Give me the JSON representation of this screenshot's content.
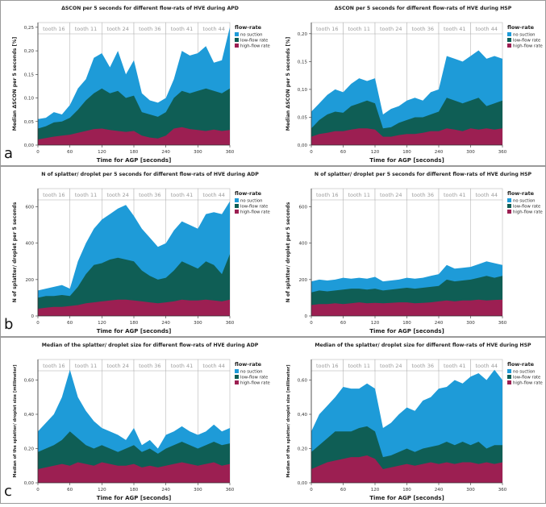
{
  "colors": {
    "no_suction": "#1e9bd8",
    "low_flow": "#0f5e55",
    "high_flow": "#9c1f52",
    "band_border": "#b8b8b8",
    "tooth_text": "#9a9a9a",
    "axis": "#333333",
    "grid": "#d8d8d8"
  },
  "legend": {
    "title": "flow-rate",
    "items": [
      {
        "label": "no suction",
        "color": "#1e9bd8"
      },
      {
        "label": "low-flow rate",
        "color": "#0f5e55"
      },
      {
        "label": "high-flow rate",
        "color": "#9c1f52"
      }
    ]
  },
  "rows": [
    {
      "letter": "a"
    },
    {
      "letter": "b"
    },
    {
      "letter": "c"
    }
  ],
  "chart_data": [
    {
      "id": "a1",
      "type": "area",
      "row": 0,
      "col": 0,
      "title": "ΔSCON per 5 seconds for different flow-rats of HVE during APD",
      "xlabel": "Time for AGP [seconds]",
      "ylabel": "Median ΔSCON per 5 seconds [%]",
      "xlim": [
        0,
        360
      ],
      "ylim": [
        0,
        0.26
      ],
      "xticks": [
        0,
        60,
        120,
        180,
        240,
        300,
        360
      ],
      "xtick_labels": [
        "0",
        "60",
        "120",
        "180",
        "240",
        "300",
        "360"
      ],
      "yticks": [
        0,
        0.05,
        0.1,
        0.15,
        0.2,
        0.25
      ],
      "ytick_labels": [
        "0,00",
        "0,05",
        "0,10",
        "0,15",
        "0,20",
        "0,25"
      ],
      "teeth": [
        "tooth 16",
        "tooth 11",
        "tooth 24",
        "tooth 36",
        "tooth 41",
        "tooth 44"
      ],
      "x": [
        0,
        15,
        30,
        45,
        60,
        75,
        90,
        105,
        120,
        135,
        150,
        165,
        180,
        195,
        210,
        225,
        240,
        255,
        270,
        285,
        300,
        315,
        330,
        345,
        360
      ],
      "series": [
        {
          "name": "high-flow rate",
          "values": [
            0.012,
            0.015,
            0.018,
            0.02,
            0.022,
            0.026,
            0.03,
            0.034,
            0.035,
            0.032,
            0.03,
            0.028,
            0.03,
            0.02,
            0.016,
            0.014,
            0.02,
            0.035,
            0.038,
            0.034,
            0.032,
            0.03,
            0.033,
            0.03,
            0.032
          ]
        },
        {
          "name": "low-flow rate",
          "values": [
            0.035,
            0.04,
            0.048,
            0.05,
            0.058,
            0.075,
            0.095,
            0.11,
            0.12,
            0.11,
            0.115,
            0.1,
            0.105,
            0.07,
            0.065,
            0.06,
            0.07,
            0.1,
            0.115,
            0.11,
            0.115,
            0.12,
            0.115,
            0.11,
            0.12
          ]
        },
        {
          "name": "no suction",
          "values": [
            0.055,
            0.058,
            0.07,
            0.065,
            0.085,
            0.12,
            0.14,
            0.185,
            0.195,
            0.165,
            0.2,
            0.15,
            0.18,
            0.11,
            0.095,
            0.09,
            0.1,
            0.14,
            0.2,
            0.19,
            0.195,
            0.21,
            0.175,
            0.18,
            0.25
          ]
        }
      ]
    },
    {
      "id": "a2",
      "type": "area",
      "row": 0,
      "col": 1,
      "title": "ΔSCON per 5 seconds for different flow-rats of HVE during HSP",
      "xlabel": "Time for AGP [seconds]",
      "ylabel": "Median ΔSCON per 5 seconds [%]",
      "xlim": [
        0,
        360
      ],
      "ylim": [
        0,
        0.22
      ],
      "xticks": [
        0,
        60,
        120,
        180,
        240,
        300,
        360
      ],
      "xtick_labels": [
        "0",
        "60",
        "120",
        "180",
        "240",
        "300",
        "360"
      ],
      "yticks": [
        0,
        0.05,
        0.1,
        0.15,
        0.2
      ],
      "ytick_labels": [
        "0,00",
        "0,05",
        "0,10",
        "0,15",
        "0,20"
      ],
      "teeth": [
        "tooth 16",
        "tooth 11",
        "tooth 24",
        "tooth 36",
        "tooth 41",
        "tooth 44"
      ],
      "x": [
        0,
        15,
        30,
        45,
        60,
        75,
        90,
        105,
        120,
        135,
        150,
        165,
        180,
        195,
        210,
        225,
        240,
        255,
        270,
        285,
        300,
        315,
        330,
        345,
        360
      ],
      "series": [
        {
          "name": "high-flow rate",
          "values": [
            0.015,
            0.02,
            0.022,
            0.025,
            0.025,
            0.028,
            0.03,
            0.03,
            0.028,
            0.015,
            0.015,
            0.018,
            0.02,
            0.02,
            0.022,
            0.025,
            0.025,
            0.03,
            0.028,
            0.025,
            0.03,
            0.028,
            0.03,
            0.028,
            0.03
          ]
        },
        {
          "name": "low-flow rate",
          "values": [
            0.03,
            0.045,
            0.055,
            0.06,
            0.058,
            0.07,
            0.075,
            0.08,
            0.075,
            0.03,
            0.032,
            0.04,
            0.045,
            0.05,
            0.05,
            0.055,
            0.06,
            0.085,
            0.08,
            0.075,
            0.08,
            0.085,
            0.07,
            0.075,
            0.08
          ]
        },
        {
          "name": "no suction",
          "values": [
            0.06,
            0.075,
            0.09,
            0.1,
            0.095,
            0.11,
            0.12,
            0.115,
            0.12,
            0.055,
            0.065,
            0.07,
            0.08,
            0.085,
            0.08,
            0.095,
            0.1,
            0.16,
            0.155,
            0.15,
            0.16,
            0.17,
            0.155,
            0.16,
            0.155
          ]
        }
      ]
    },
    {
      "id": "b1",
      "type": "area",
      "row": 1,
      "col": 0,
      "title": "N of splatter/ droplet per 5 seconds for different flow-rats of HVE during ADP",
      "xlabel": "Time for AGP [seconds]",
      "ylabel": "N of splatter/ droplet per 5 seconds",
      "xlim": [
        0,
        360
      ],
      "ylim": [
        0,
        700
      ],
      "xticks": [
        0,
        60,
        120,
        180,
        240,
        300,
        360
      ],
      "xtick_labels": [
        "0",
        "60",
        "120",
        "180",
        "240",
        "300",
        "360"
      ],
      "yticks": [
        0,
        200,
        400,
        600
      ],
      "ytick_labels": [
        "0",
        "200",
        "400",
        "600"
      ],
      "teeth": [
        "tooth 16",
        "tooth 11",
        "tooth 24",
        "tooth 36",
        "tooth 41",
        "tooth 44"
      ],
      "x": [
        0,
        15,
        30,
        45,
        60,
        75,
        90,
        105,
        120,
        135,
        150,
        165,
        180,
        195,
        210,
        225,
        240,
        255,
        270,
        285,
        300,
        315,
        330,
        345,
        360
      ],
      "series": [
        {
          "name": "high-flow rate",
          "values": [
            40,
            45,
            50,
            50,
            55,
            60,
            70,
            75,
            80,
            85,
            90,
            90,
            85,
            80,
            75,
            70,
            75,
            80,
            90,
            85,
            85,
            90,
            85,
            80,
            90
          ]
        },
        {
          "name": "low-flow rate",
          "values": [
            100,
            110,
            110,
            115,
            110,
            160,
            230,
            280,
            290,
            310,
            320,
            310,
            300,
            250,
            220,
            200,
            210,
            250,
            300,
            280,
            260,
            300,
            280,
            230,
            340
          ]
        },
        {
          "name": "no suction",
          "values": [
            140,
            150,
            160,
            170,
            150,
            300,
            400,
            480,
            530,
            560,
            590,
            610,
            550,
            480,
            430,
            380,
            400,
            470,
            520,
            500,
            480,
            560,
            570,
            560,
            630
          ]
        }
      ]
    },
    {
      "id": "b2",
      "type": "area",
      "row": 1,
      "col": 1,
      "title": "N of splatter/ droplet per 5 seconds for different flow-rats of HVE during HSP",
      "xlabel": "Time for AGP [seconds]",
      "ylabel": "N of splatter/ droplet per 5 seconds",
      "xlim": [
        0,
        360
      ],
      "ylim": [
        0,
        700
      ],
      "xticks": [
        0,
        60,
        120,
        180,
        240,
        300,
        360
      ],
      "xtick_labels": [
        "0",
        "60",
        "120",
        "180",
        "240",
        "300",
        "360"
      ],
      "yticks": [
        0,
        200,
        400,
        600
      ],
      "ytick_labels": [
        "0",
        "200",
        "400",
        "600"
      ],
      "teeth": [
        "tooth 16",
        "tooth 11",
        "tooth 24",
        "tooth 36",
        "tooth 41",
        "tooth 44"
      ],
      "x": [
        0,
        15,
        30,
        45,
        60,
        75,
        90,
        105,
        120,
        135,
        150,
        165,
        180,
        195,
        210,
        225,
        240,
        255,
        270,
        285,
        300,
        315,
        330,
        345,
        360
      ],
      "series": [
        {
          "name": "high-flow rate",
          "values": [
            60,
            65,
            65,
            70,
            65,
            70,
            75,
            70,
            72,
            70,
            72,
            75,
            75,
            70,
            72,
            75,
            80,
            85,
            80,
            85,
            85,
            90,
            85,
            88,
            90
          ]
        },
        {
          "name": "low-flow rate",
          "values": [
            130,
            140,
            135,
            140,
            145,
            150,
            150,
            145,
            150,
            140,
            145,
            150,
            155,
            150,
            155,
            160,
            165,
            200,
            190,
            195,
            200,
            210,
            220,
            210,
            220
          ]
        },
        {
          "name": "no suction",
          "values": [
            190,
            200,
            195,
            200,
            210,
            205,
            210,
            205,
            215,
            190,
            195,
            200,
            210,
            205,
            210,
            220,
            230,
            280,
            260,
            265,
            270,
            285,
            300,
            290,
            280
          ]
        }
      ]
    },
    {
      "id": "c1",
      "type": "area",
      "row": 2,
      "col": 0,
      "title": "Median of the splatter/ droplet size for different flow-rats of HVE during ADP",
      "xlabel": "Time for AGP [seconds]",
      "ylabel": "Median of the splatter/ droplet size [millimeter]",
      "xlim": [
        0,
        360
      ],
      "ylim": [
        0,
        0.72
      ],
      "xticks": [
        0,
        60,
        120,
        180,
        240,
        300,
        360
      ],
      "xtick_labels": [
        "0",
        "60",
        "120",
        "180",
        "240",
        "300",
        "360"
      ],
      "yticks": [
        0,
        0.2,
        0.4,
        0.6
      ],
      "ytick_labels": [
        "0,00",
        "0,20",
        "0,40",
        "0,60"
      ],
      "teeth": [
        "tooth 16",
        "tooth 11",
        "tooth 24",
        "tooth 36",
        "tooth 41",
        "tooth 44"
      ],
      "x": [
        0,
        15,
        30,
        45,
        60,
        75,
        90,
        105,
        120,
        135,
        150,
        165,
        180,
        195,
        210,
        225,
        240,
        255,
        270,
        285,
        300,
        315,
        330,
        345,
        360
      ],
      "series": [
        {
          "name": "high-flow rate",
          "values": [
            0.08,
            0.09,
            0.1,
            0.11,
            0.1,
            0.12,
            0.11,
            0.1,
            0.12,
            0.11,
            0.1,
            0.1,
            0.11,
            0.09,
            0.1,
            0.09,
            0.1,
            0.11,
            0.12,
            0.11,
            0.1,
            0.11,
            0.12,
            0.1,
            0.11
          ]
        },
        {
          "name": "low-flow rate",
          "values": [
            0.18,
            0.2,
            0.22,
            0.25,
            0.3,
            0.26,
            0.22,
            0.2,
            0.22,
            0.2,
            0.18,
            0.2,
            0.22,
            0.18,
            0.2,
            0.17,
            0.2,
            0.22,
            0.24,
            0.22,
            0.2,
            0.22,
            0.24,
            0.22,
            0.23
          ]
        },
        {
          "name": "no suction",
          "values": [
            0.3,
            0.35,
            0.4,
            0.5,
            0.66,
            0.5,
            0.42,
            0.36,
            0.32,
            0.3,
            0.28,
            0.25,
            0.32,
            0.22,
            0.25,
            0.2,
            0.28,
            0.3,
            0.33,
            0.3,
            0.28,
            0.3,
            0.34,
            0.3,
            0.32
          ]
        }
      ]
    },
    {
      "id": "c2",
      "type": "area",
      "row": 2,
      "col": 1,
      "title": "Median of the splatter/ droplet size for different flow-rats of HVE during HSP",
      "xlabel": "Time for AGP [seconds]",
      "ylabel": "Median of the splatter/ droplet size [millimeter]",
      "xlim": [
        0,
        360
      ],
      "ylim": [
        0,
        0.72
      ],
      "xticks": [
        0,
        60,
        120,
        180,
        240,
        300,
        360
      ],
      "xtick_labels": [
        "0",
        "60",
        "120",
        "180",
        "240",
        "300",
        "360"
      ],
      "yticks": [
        0,
        0.2,
        0.4,
        0.6
      ],
      "ytick_labels": [
        "0,00",
        "0,20",
        "0,40",
        "0,60"
      ],
      "teeth": [
        "tooth 16",
        "tooth 11",
        "tooth 24",
        "tooth 36",
        "tooth 41",
        "tooth 44"
      ],
      "x": [
        0,
        15,
        30,
        45,
        60,
        75,
        90,
        105,
        120,
        135,
        150,
        165,
        180,
        195,
        210,
        225,
        240,
        255,
        270,
        285,
        300,
        315,
        330,
        345,
        360
      ],
      "series": [
        {
          "name": "high-flow rate",
          "values": [
            0.08,
            0.1,
            0.12,
            0.13,
            0.14,
            0.15,
            0.15,
            0.16,
            0.14,
            0.08,
            0.09,
            0.1,
            0.11,
            0.1,
            0.11,
            0.12,
            0.11,
            0.12,
            0.11,
            0.12,
            0.12,
            0.11,
            0.12,
            0.11,
            0.12
          ]
        },
        {
          "name": "low-flow rate",
          "values": [
            0.18,
            0.22,
            0.26,
            0.3,
            0.3,
            0.3,
            0.32,
            0.33,
            0.3,
            0.15,
            0.16,
            0.18,
            0.2,
            0.18,
            0.2,
            0.21,
            0.22,
            0.24,
            0.22,
            0.24,
            0.22,
            0.24,
            0.2,
            0.22,
            0.22
          ]
        },
        {
          "name": "no suction",
          "values": [
            0.3,
            0.4,
            0.45,
            0.5,
            0.56,
            0.55,
            0.55,
            0.58,
            0.55,
            0.32,
            0.35,
            0.4,
            0.44,
            0.42,
            0.48,
            0.5,
            0.55,
            0.56,
            0.6,
            0.58,
            0.62,
            0.64,
            0.6,
            0.66,
            0.6
          ]
        }
      ]
    }
  ]
}
